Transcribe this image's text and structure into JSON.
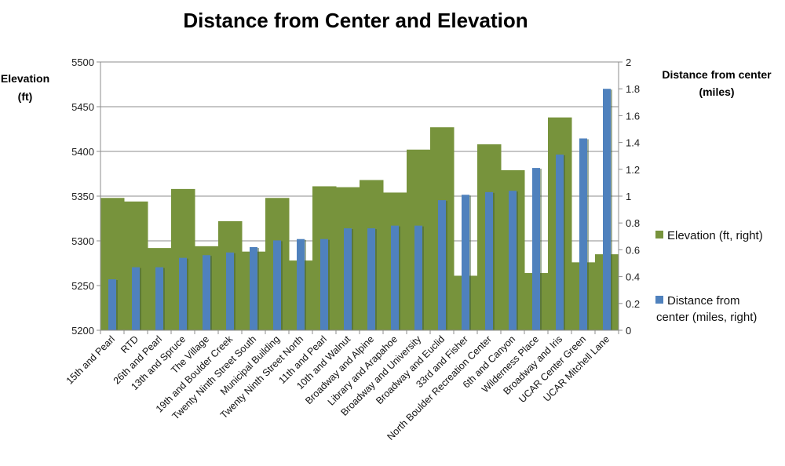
{
  "chart_data": {
    "type": "bar",
    "title": "Distance from Center and Elevation",
    "ylabel_left": [
      "Elevation",
      "(ft)"
    ],
    "ylabel_right": [
      "Distance from center",
      "(miles)"
    ],
    "ylim_left": [
      5200,
      5500
    ],
    "yticks_left": [
      5200,
      5250,
      5300,
      5350,
      5400,
      5450,
      5500
    ],
    "ylim_right": [
      0,
      2
    ],
    "yticks_right": [
      "0",
      "0.2",
      "0.4",
      "0.6",
      "0.8",
      "1",
      "1.2",
      "1.4",
      "1.6",
      "1.8",
      "2"
    ],
    "grid": true,
    "legend_position": "right",
    "categories": [
      "15th and Pearl",
      "RTD",
      "26th and Pearl",
      "13th and Spruce",
      "The Village",
      "19th and Boulder Creek",
      "Twenty Ninth Street South",
      "Municipal Building",
      "Twenty Ninth Street North",
      "11th and Pearl",
      "10th and Walnut",
      "Broadway and Alpine",
      "Library and Arapahoe",
      "Broadway and University",
      "Broadway and Euclid",
      "33rd and Fisher",
      "North Boulder Recreation Center",
      "6th and Canyon",
      "Wilderness Place",
      "Broadway and Iris",
      "UCAR Center Green",
      "UCAR Mitchell Lane"
    ],
    "series": [
      {
        "name": "Elevation (ft, right)",
        "axis": "left",
        "style": "stepped-area",
        "color": "#77933C",
        "values": [
          5348,
          5344,
          5292,
          5358,
          5294,
          5322,
          5288,
          5348,
          5278,
          5361,
          5360,
          5368,
          5354,
          5402,
          5427,
          5261,
          5408,
          5379,
          5264,
          5438,
          5276,
          5285
        ]
      },
      {
        "name": "Distance from center (miles, right)",
        "axis": "right",
        "style": "bar",
        "color": "#4F81BD",
        "values": [
          0.38,
          0.47,
          0.47,
          0.54,
          0.56,
          0.58,
          0.62,
          0.67,
          0.68,
          0.68,
          0.76,
          0.76,
          0.78,
          0.78,
          0.97,
          1.01,
          1.03,
          1.04,
          1.21,
          1.31,
          1.43,
          1.8
        ]
      }
    ],
    "legend_lines": [
      [
        "Elevation (ft, right)"
      ],
      [
        "Distance from",
        "center (miles, right)"
      ]
    ]
  }
}
